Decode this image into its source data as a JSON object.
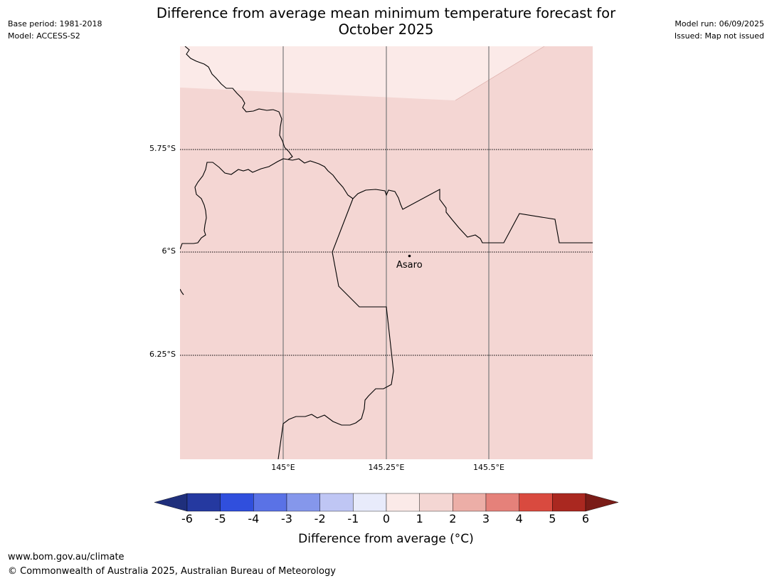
{
  "header": {
    "title_line1": "Difference from average mean minimum temperature forecast for",
    "title_line2": "October 2025",
    "base_period": "Base period: 1981-2018",
    "model": "Model: ACCESS-S2",
    "model_run": "Model run: 06/09/2025",
    "issued": "Issued: Map not issued"
  },
  "map": {
    "lat_labels": [
      "5.75°S",
      "6°S",
      "6.25°S"
    ],
    "lon_labels": [
      "145°E",
      "145.25°E",
      "145.5°E"
    ],
    "place": "Asaro",
    "colors": {
      "anomaly_0_1": "#fbeae8",
      "anomaly_1_2": "#f4d6d3",
      "border": "#000000",
      "gridline": "#555555"
    }
  },
  "colorbar": {
    "label": "Difference from average ($^\\circ$C)",
    "label_display": "Difference from average (°C)",
    "ticks": [
      "-6",
      "-5",
      "-4",
      "-3",
      "-2",
      "-1",
      "0",
      "1",
      "2",
      "3",
      "4",
      "5",
      "6"
    ],
    "colors": [
      "#2539a0",
      "#304fdd",
      "#5a72e6",
      "#8597eb",
      "#bfc6f4",
      "#e8ebfb",
      "#fbeae8",
      "#f4d6d3",
      "#ecaea7",
      "#e5817a",
      "#d94a3f",
      "#aa2820"
    ],
    "under_color": "#1f2f7c",
    "over_color": "#7a1c17"
  },
  "footer": {
    "url": "www.bom.gov.au/climate",
    "copyright": "© Commonwealth of Australia 2025, Australian Bureau of Meteorology"
  }
}
